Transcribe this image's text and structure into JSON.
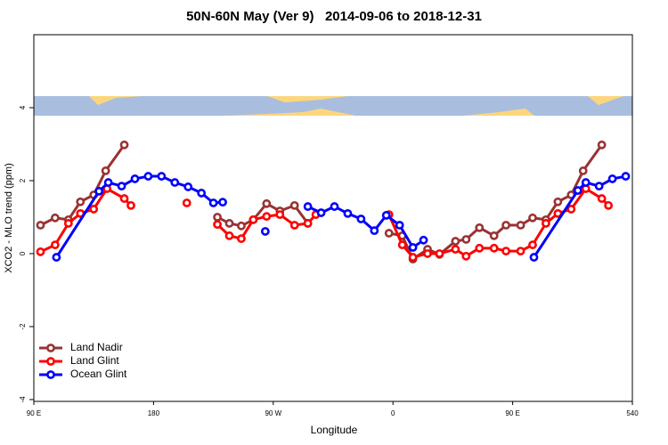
{
  "chart_data": {
    "type": "line",
    "title": "50N-60N May (Ver 9)   2014-09-06 to 2018-12-31",
    "x_label": "Longitude",
    "y_label": "XCO2 - MLO trend (ppm)",
    "xlim": [
      90,
      540
    ],
    "ylim": [
      -4.05,
      6
    ],
    "xticks": [
      {
        "value": 90,
        "label": "90 E"
      },
      180,
      {
        "value": 270,
        "label": "90 W"
      },
      {
        "value": 360,
        "label": "0"
      },
      {
        "value": 450,
        "label": "90 E"
      },
      540
    ],
    "yticks": [
      -4,
      -2,
      0,
      2,
      4
    ],
    "legend_position": "lower left",
    "series": [
      {
        "name": "Land Nadir",
        "color": "#993333",
        "x": [
          95,
          106,
          116,
          125,
          135,
          144,
          158,
          null,
          228,
          237,
          246,
          255,
          265,
          275,
          286,
          296,
          null,
          357,
          367,
          375,
          386,
          395,
          407,
          415,
          425,
          436,
          445,
          456,
          465,
          475,
          484,
          494,
          503,
          517
        ],
        "values": [
          0.78,
          0.98,
          0.93,
          1.42,
          1.61,
          2.27,
          2.98,
          null,
          1.0,
          0.83,
          0.76,
          0.93,
          1.37,
          1.17,
          1.32,
          0.83,
          null,
          0.56,
          0.49,
          -0.15,
          0.12,
          -0.02,
          0.34,
          0.39,
          0.71,
          0.49,
          0.78,
          0.78,
          0.98,
          0.93,
          1.42,
          1.61,
          2.27,
          2.98
        ]
      },
      {
        "name": "Land Glint",
        "color": "#ff0000",
        "x": [
          95,
          106,
          116,
          125,
          135,
          145,
          158,
          163,
          null,
          205,
          null,
          228,
          237,
          246,
          255,
          265,
          275,
          286,
          296,
          302,
          null,
          357,
          367,
          375,
          386,
          395,
          407,
          415,
          425,
          436,
          445,
          456,
          465,
          475,
          484,
          494,
          505,
          517,
          522
        ],
        "values": [
          0.05,
          0.24,
          0.83,
          1.1,
          1.22,
          1.78,
          1.51,
          1.32,
          null,
          1.39,
          null,
          0.8,
          0.49,
          0.41,
          0.93,
          1.02,
          1.07,
          0.78,
          0.83,
          1.07,
          null,
          1.07,
          0.24,
          -0.1,
          0.0,
          0.0,
          0.12,
          -0.07,
          0.15,
          0.15,
          0.07,
          0.07,
          0.24,
          0.83,
          1.1,
          1.22,
          1.78,
          1.51,
          1.32
        ]
      },
      {
        "name": "Ocean Glint",
        "color": "#0000ff",
        "x": [
          107,
          139,
          146,
          156,
          166,
          176,
          186,
          196,
          206,
          216,
          225,
          232,
          null,
          264,
          null,
          296,
          306,
          316,
          326,
          336,
          346,
          355,
          365,
          375,
          383,
          null,
          466,
          499,
          505,
          515,
          525,
          535
        ],
        "values": [
          -0.1,
          1.71,
          1.95,
          1.85,
          2.05,
          2.12,
          2.12,
          1.95,
          1.83,
          1.66,
          1.39,
          1.41,
          null,
          0.61,
          null,
          1.29,
          1.12,
          1.29,
          1.1,
          0.95,
          0.63,
          1.05,
          0.78,
          0.17,
          0.37,
          null,
          -0.1,
          1.73,
          1.95,
          1.85,
          2.05,
          2.12
        ]
      }
    ]
  }
}
